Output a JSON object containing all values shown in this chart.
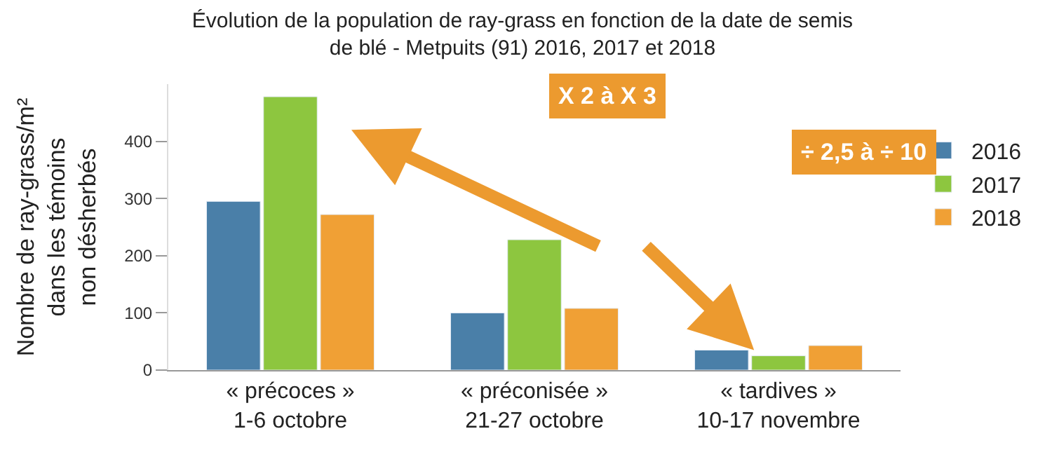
{
  "chart_data": {
    "type": "bar",
    "title": "Évolution de la population de ray-grass en fonction de la date de semis\nde blé - Metpuits (91) 2016, 2017 et 2018",
    "ylabel": "Nombre de ray-grass/m²\ndans les témoins\nnon désherbés",
    "categories": [
      "« précoces »\n1-6 octobre",
      "« préconisée »\n21-27 octobre",
      "« tardives »\n10-17 novembre"
    ],
    "series": [
      {
        "name": "2016",
        "color": "#4a7fa8",
        "values": [
          295,
          100,
          35
        ]
      },
      {
        "name": "2017",
        "color": "#8dc63f",
        "values": [
          478,
          228,
          25
        ]
      },
      {
        "name": "2018",
        "color": "#f0a035",
        "values": [
          272,
          108,
          43
        ]
      }
    ],
    "ylim": [
      0,
      500
    ],
    "yticks": [
      0,
      100,
      200,
      300,
      400
    ],
    "legend": "right",
    "annotations": [
      "X 2 à X 3",
      "÷ 2,5 à ÷ 10"
    ]
  }
}
